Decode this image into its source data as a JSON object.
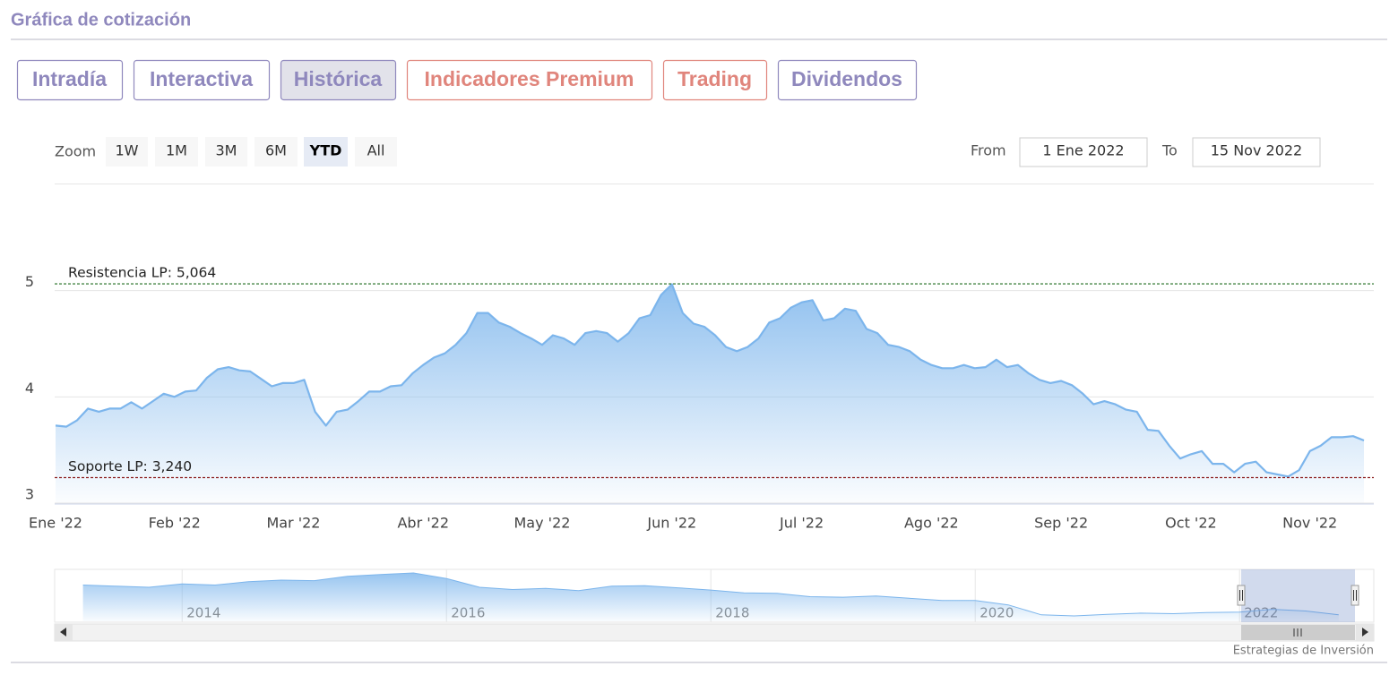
{
  "header": {
    "title": "Gráfica de cotización"
  },
  "tabs": [
    {
      "label": "Intradía",
      "color": "#8f88bd"
    },
    {
      "label": "Interactiva",
      "color": "#8f88bd"
    },
    {
      "label": "Histórica",
      "color": "#8f88bd",
      "active": true
    },
    {
      "label": "Indicadores Premium",
      "color": "#e0857c"
    },
    {
      "label": "Trading",
      "color": "#e0857c"
    },
    {
      "label": "Dividendos",
      "color": "#8f88bd"
    }
  ],
  "range_selector": {
    "zoom_label": "Zoom",
    "buttons": [
      "1W",
      "1M",
      "3M",
      "6M",
      "YTD",
      "All"
    ],
    "active_button": 4,
    "from_label": "From",
    "from": "1 Ene 2022",
    "to_label": "To",
    "to": "15 Nov 2022"
  },
  "chart_data": {
    "type": "area",
    "categories": [
      "Ene '22",
      null,
      null,
      null,
      null,
      null,
      null,
      null,
      null,
      null,
      null,
      "Feb '22",
      null,
      null,
      null,
      null,
      null,
      null,
      null,
      null,
      null,
      null,
      "Mar '22",
      null,
      null,
      null,
      null,
      null,
      null,
      null,
      null,
      null,
      null,
      null,
      "Abr '22",
      null,
      null,
      null,
      null,
      null,
      null,
      null,
      null,
      null,
      null,
      "May '22",
      null,
      null,
      null,
      null,
      null,
      null,
      null,
      null,
      null,
      null,
      null,
      "Jun '22",
      null,
      null,
      null,
      null,
      null,
      null,
      null,
      null,
      null,
      null,
      null,
      "Jul '22",
      null,
      null,
      null,
      null,
      null,
      null,
      null,
      null,
      null,
      null,
      null,
      "Ago '22",
      null,
      null,
      null,
      null,
      null,
      null,
      null,
      null,
      null,
      null,
      null,
      "Sep '22",
      null,
      null,
      null,
      null,
      null,
      null,
      null,
      null,
      null,
      null,
      null,
      "Oct '22",
      null,
      null,
      null,
      null,
      null,
      null,
      null,
      null,
      null,
      null,
      "Nov '22",
      null,
      null,
      null,
      null,
      null
    ],
    "values": [
      3.73,
      3.72,
      3.78,
      3.89,
      3.86,
      3.89,
      3.89,
      3.95,
      3.89,
      3.96,
      4.03,
      4.0,
      4.05,
      4.06,
      4.18,
      4.26,
      4.28,
      4.25,
      4.24,
      4.17,
      4.1,
      4.13,
      4.13,
      4.16,
      3.86,
      3.73,
      3.86,
      3.88,
      3.96,
      4.05,
      4.05,
      4.1,
      4.11,
      4.22,
      4.3,
      4.37,
      4.41,
      4.49,
      4.6,
      4.79,
      4.79,
      4.7,
      4.66,
      4.6,
      4.55,
      4.49,
      4.58,
      4.55,
      4.49,
      4.6,
      4.62,
      4.6,
      4.52,
      4.6,
      4.74,
      4.77,
      4.96,
      5.06,
      4.79,
      4.69,
      4.66,
      4.58,
      4.47,
      4.43,
      4.47,
      4.55,
      4.7,
      4.74,
      4.84,
      4.89,
      4.91,
      4.72,
      4.74,
      4.83,
      4.81,
      4.64,
      4.6,
      4.49,
      4.47,
      4.43,
      4.35,
      4.3,
      4.27,
      4.27,
      4.3,
      4.27,
      4.28,
      4.35,
      4.28,
      4.3,
      4.22,
      4.16,
      4.13,
      4.15,
      4.11,
      4.03,
      3.93,
      3.96,
      3.93,
      3.88,
      3.86,
      3.69,
      3.68,
      3.54,
      3.42,
      3.46,
      3.49,
      3.37,
      3.37,
      3.29,
      3.37,
      3.39,
      3.29,
      3.27,
      3.25,
      3.31,
      3.49,
      3.54,
      3.62,
      3.62,
      3.63,
      3.59
    ],
    "color": "#7cb5ec",
    "ylim": [
      3,
      6
    ],
    "yticks": [
      3,
      4,
      5
    ],
    "grid": true,
    "plot_lines": [
      {
        "label": "Resistencia LP: 5,064",
        "value": 5.064,
        "color": "#1e6b1e"
      },
      {
        "label": "Soporte LP: 3,240",
        "value": 3.24,
        "color": "#8b1a1a"
      }
    ],
    "navigator": {
      "categories": [
        null,
        null,
        null,
        "2014",
        null,
        null,
        null,
        null,
        null,
        null,
        null,
        "2016",
        null,
        null,
        null,
        null,
        null,
        null,
        null,
        "2018",
        null,
        null,
        null,
        null,
        null,
        null,
        null,
        "2020",
        null,
        null,
        null,
        null,
        null,
        null,
        null,
        "2022",
        null,
        null,
        null
      ],
      "values": [
        9.0,
        8.8,
        8.6,
        9.2,
        9.0,
        9.6,
        9.9,
        9.8,
        10.6,
        10.9,
        11.2,
        10.2,
        8.6,
        8.2,
        8.4,
        8.0,
        8.8,
        8.9,
        8.5,
        8.1,
        7.6,
        7.5,
        6.9,
        6.8,
        7.0,
        6.6,
        6.2,
        6.2,
        5.4,
        3.6,
        3.4,
        3.7,
        3.9,
        3.8,
        4.0,
        4.1,
        4.6,
        4.3,
        3.6
      ],
      "color": "#7cb5ec"
    }
  },
  "footer": {
    "credit": "Estrategias de Inversión"
  }
}
